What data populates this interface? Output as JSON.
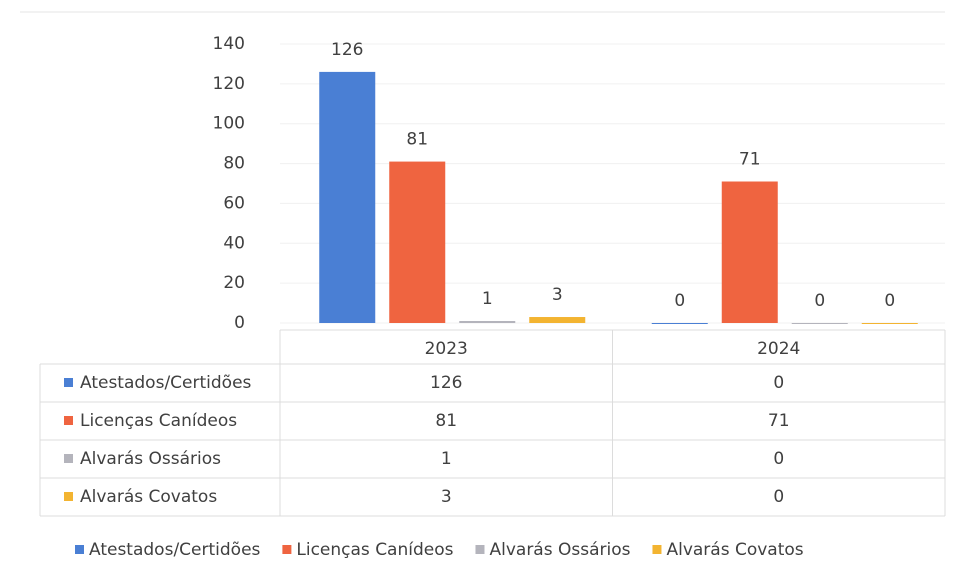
{
  "chart_data": {
    "type": "bar",
    "categories": [
      "2023",
      "2024"
    ],
    "series": [
      {
        "name": "Atestados/Certidões",
        "color": "#4a7fd4",
        "values": [
          126,
          0
        ]
      },
      {
        "name": "Licenças Canídeos",
        "color": "#ef6440",
        "values": [
          81,
          71
        ]
      },
      {
        "name": "Alvarás Ossários",
        "color": "#b4b4bc",
        "values": [
          1,
          0
        ]
      },
      {
        "name": "Alvarás Covatos",
        "color": "#f3b431",
        "values": [
          3,
          0
        ]
      }
    ],
    "ylim": [
      0,
      140
    ],
    "yticks": [
      0,
      20,
      40,
      60,
      80,
      100,
      120,
      140
    ],
    "grid": true,
    "data_table": true,
    "legend": "bottom"
  }
}
